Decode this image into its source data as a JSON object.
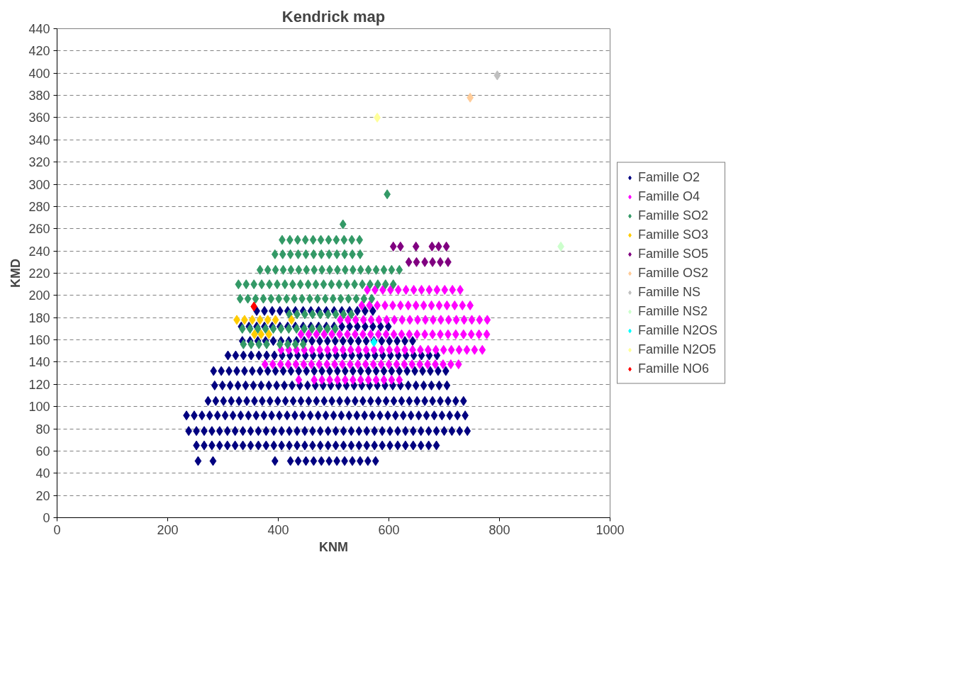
{
  "chart_data": {
    "type": "scatter",
    "title": "Kendrick map",
    "xlabel": "KNM",
    "ylabel": "KMD",
    "xlim": [
      0,
      1000
    ],
    "xticks": [
      0,
      200,
      400,
      600,
      800,
      1000
    ],
    "ylim": [
      0,
      440
    ],
    "yticks": [
      0,
      20,
      40,
      60,
      80,
      100,
      120,
      140,
      160,
      180,
      200,
      220,
      240,
      260,
      280,
      300,
      320,
      340,
      360,
      380,
      400,
      420,
      440
    ],
    "grid": "y",
    "legend": "right",
    "marker": "diamond",
    "series": [
      {
        "name": "Famille O2",
        "color": "#000080",
        "x": [
          255,
          282,
          394,
          422,
          436,
          450,
          464,
          478,
          492,
          506,
          520,
          534,
          548,
          562,
          576,
          252,
          266,
          280,
          294,
          308,
          322,
          336,
          350,
          364,
          378,
          392,
          406,
          420,
          434,
          448,
          462,
          476,
          490,
          504,
          518,
          532,
          546,
          560,
          574,
          588,
          602,
          616,
          630,
          644,
          658,
          672,
          686,
          238,
          252,
          266,
          280,
          294,
          308,
          322,
          336,
          350,
          364,
          378,
          392,
          406,
          420,
          434,
          448,
          462,
          476,
          490,
          504,
          518,
          532,
          546,
          560,
          574,
          588,
          602,
          616,
          630,
          644,
          658,
          672,
          686,
          700,
          714,
          728,
          742,
          234,
          248,
          262,
          276,
          290,
          304,
          318,
          332,
          346,
          360,
          374,
          388,
          402,
          416,
          430,
          444,
          458,
          472,
          486,
          500,
          514,
          528,
          542,
          556,
          570,
          584,
          598,
          612,
          626,
          640,
          654,
          668,
          682,
          696,
          710,
          724,
          738,
          273,
          287,
          301,
          315,
          329,
          343,
          357,
          371,
          385,
          399,
          413,
          427,
          441,
          455,
          469,
          483,
          497,
          511,
          525,
          539,
          553,
          567,
          581,
          595,
          609,
          623,
          637,
          651,
          665,
          679,
          693,
          707,
          721,
          735,
          285,
          299,
          313,
          327,
          341,
          355,
          369,
          383,
          397,
          411,
          425,
          439,
          453,
          467,
          481,
          495,
          509,
          523,
          537,
          551,
          565,
          579,
          593,
          607,
          621,
          635,
          649,
          663,
          677,
          691,
          705,
          283,
          297,
          311,
          325,
          339,
          353,
          367,
          381,
          395,
          409,
          423,
          437,
          451,
          465,
          479,
          493,
          507,
          521,
          535,
          549,
          563,
          577,
          591,
          605,
          619,
          633,
          647,
          661,
          675,
          689,
          703,
          309,
          323,
          337,
          351,
          365,
          379,
          393,
          407,
          421,
          435,
          449,
          463,
          477,
          491,
          505,
          519,
          533,
          547,
          561,
          575,
          589,
          603,
          617,
          631,
          645,
          659,
          673,
          687,
          335,
          349,
          363,
          377,
          391,
          405,
          419,
          433,
          447,
          461,
          475,
          489,
          503,
          517,
          531,
          545,
          559,
          573,
          587,
          601,
          615,
          629,
          643,
          333,
          347,
          361,
          375,
          389,
          403,
          417,
          431,
          445,
          459,
          473,
          487,
          501,
          515,
          529,
          543,
          557,
          571,
          585,
          599,
          361,
          375,
          389,
          403,
          417,
          431,
          445,
          459,
          473,
          487,
          501,
          515,
          529,
          543,
          557,
          571
        ],
        "values": [
          51,
          51,
          51,
          51,
          51,
          51,
          51,
          51,
          51,
          51,
          51,
          51,
          51,
          51,
          51,
          65,
          65,
          65,
          65,
          65,
          65,
          65,
          65,
          65,
          65,
          65,
          65,
          65,
          65,
          65,
          65,
          65,
          65,
          65,
          65,
          65,
          65,
          65,
          65,
          65,
          65,
          65,
          65,
          65,
          65,
          65,
          65,
          78,
          78,
          78,
          78,
          78,
          78,
          78,
          78,
          78,
          78,
          78,
          78,
          78,
          78,
          78,
          78,
          78,
          78,
          78,
          78,
          78,
          78,
          78,
          78,
          78,
          78,
          78,
          78,
          78,
          78,
          78,
          78,
          78,
          78,
          78,
          78,
          78,
          92,
          92,
          92,
          92,
          92,
          92,
          92,
          92,
          92,
          92,
          92,
          92,
          92,
          92,
          92,
          92,
          92,
          92,
          92,
          92,
          92,
          92,
          92,
          92,
          92,
          92,
          92,
          92,
          92,
          92,
          92,
          92,
          92,
          92,
          92,
          92,
          92,
          105,
          105,
          105,
          105,
          105,
          105,
          105,
          105,
          105,
          105,
          105,
          105,
          105,
          105,
          105,
          105,
          105,
          105,
          105,
          105,
          105,
          105,
          105,
          105,
          105,
          105,
          105,
          105,
          105,
          105,
          105,
          105,
          105,
          105,
          119,
          119,
          119,
          119,
          119,
          119,
          119,
          119,
          119,
          119,
          119,
          119,
          119,
          119,
          119,
          119,
          119,
          119,
          119,
          119,
          119,
          119,
          119,
          119,
          119,
          119,
          119,
          119,
          119,
          119,
          119,
          132,
          132,
          132,
          132,
          132,
          132,
          132,
          132,
          132,
          132,
          132,
          132,
          132,
          132,
          132,
          132,
          132,
          132,
          132,
          132,
          132,
          132,
          132,
          132,
          132,
          132,
          132,
          132,
          132,
          132,
          132,
          146,
          146,
          146,
          146,
          146,
          146,
          146,
          146,
          146,
          146,
          146,
          146,
          146,
          146,
          146,
          146,
          146,
          146,
          146,
          146,
          146,
          146,
          146,
          146,
          146,
          146,
          146,
          146,
          159,
          159,
          159,
          159,
          159,
          159,
          159,
          159,
          159,
          159,
          159,
          159,
          159,
          159,
          159,
          159,
          159,
          159,
          159,
          159,
          159,
          159,
          159,
          172,
          172,
          172,
          172,
          172,
          172,
          172,
          172,
          172,
          172,
          172,
          172,
          172,
          172,
          172,
          172,
          172,
          172,
          172,
          172,
          186,
          186,
          186,
          186,
          186,
          186,
          186,
          186,
          186,
          186,
          186,
          186,
          186,
          186,
          186,
          186
        ]
      },
      {
        "name": "Famille O4",
        "color": "#ff00ff",
        "x": [
          437,
          465,
          479,
          493,
          507,
          521,
          535,
          549,
          563,
          577,
          591,
          605,
          619,
          376,
          390,
          404,
          418,
          432,
          446,
          460,
          474,
          488,
          502,
          516,
          530,
          544,
          558,
          572,
          586,
          600,
          614,
          628,
          642,
          656,
          670,
          684,
          698,
          712,
          726,
          405,
          419,
          433,
          447,
          461,
          475,
          489,
          503,
          517,
          531,
          545,
          559,
          573,
          587,
          601,
          615,
          629,
          643,
          657,
          671,
          685,
          699,
          713,
          727,
          741,
          755,
          769,
          441,
          455,
          469,
          483,
          497,
          511,
          525,
          539,
          553,
          567,
          581,
          595,
          609,
          623,
          637,
          651,
          665,
          679,
          693,
          707,
          721,
          735,
          749,
          763,
          777,
          512,
          526,
          540,
          554,
          568,
          582,
          596,
          610,
          624,
          638,
          652,
          666,
          680,
          694,
          708,
          722,
          736,
          750,
          764,
          778,
          551,
          565,
          579,
          593,
          607,
          621,
          635,
          649,
          663,
          677,
          691,
          705,
          719,
          733,
          747,
          561,
          575,
          589,
          603,
          617,
          631,
          645,
          659,
          673,
          687,
          701,
          715,
          729
        ],
        "values": [
          124,
          124,
          124,
          124,
          124,
          124,
          124,
          124,
          124,
          124,
          124,
          124,
          124,
          138,
          138,
          138,
          138,
          138,
          138,
          138,
          138,
          138,
          138,
          138,
          138,
          138,
          138,
          138,
          138,
          138,
          138,
          138,
          138,
          138,
          138,
          138,
          138,
          138,
          138,
          151,
          151,
          151,
          151,
          151,
          151,
          151,
          151,
          151,
          151,
          151,
          151,
          151,
          151,
          151,
          151,
          151,
          151,
          151,
          151,
          151,
          151,
          151,
          151,
          151,
          151,
          151,
          165,
          165,
          165,
          165,
          165,
          165,
          165,
          165,
          165,
          165,
          165,
          165,
          165,
          165,
          165,
          165,
          165,
          165,
          165,
          165,
          165,
          165,
          165,
          165,
          165,
          178,
          178,
          178,
          178,
          178,
          178,
          178,
          178,
          178,
          178,
          178,
          178,
          178,
          178,
          178,
          178,
          178,
          178,
          178,
          178,
          191,
          191,
          191,
          191,
          191,
          191,
          191,
          191,
          191,
          191,
          191,
          191,
          191,
          191,
          191,
          205,
          205,
          205,
          205,
          205,
          205,
          205,
          205,
          205,
          205,
          205,
          205,
          205
        ]
      },
      {
        "name": "Famille SO2",
        "color": "#339966",
        "x": [
          597,
          517,
          407,
          421,
          435,
          449,
          463,
          477,
          491,
          505,
          519,
          533,
          547,
          394,
          408,
          422,
          436,
          450,
          464,
          478,
          492,
          506,
          520,
          534,
          548,
          367,
          381,
          395,
          409,
          423,
          437,
          451,
          465,
          479,
          493,
          507,
          521,
          535,
          549,
          563,
          577,
          591,
          605,
          619,
          328,
          342,
          356,
          370,
          384,
          398,
          412,
          426,
          440,
          454,
          468,
          482,
          496,
          510,
          524,
          538,
          552,
          566,
          580,
          594,
          608,
          331,
          345,
          359,
          373,
          387,
          401,
          415,
          429,
          443,
          457,
          471,
          485,
          499,
          513,
          527,
          541,
          555,
          569,
          420,
          434,
          448,
          462,
          476,
          490,
          504,
          518,
          532,
          335,
          349,
          363,
          377,
          391,
          405,
          419,
          433,
          447,
          461,
          475,
          489,
          503,
          337,
          351,
          365,
          379,
          403,
          417,
          431,
          445
        ],
        "values": [
          291,
          264,
          250,
          250,
          250,
          250,
          250,
          250,
          250,
          250,
          250,
          250,
          250,
          237,
          237,
          237,
          237,
          237,
          237,
          237,
          237,
          237,
          237,
          237,
          237,
          223,
          223,
          223,
          223,
          223,
          223,
          223,
          223,
          223,
          223,
          223,
          223,
          223,
          223,
          223,
          223,
          223,
          223,
          223,
          210,
          210,
          210,
          210,
          210,
          210,
          210,
          210,
          210,
          210,
          210,
          210,
          210,
          210,
          210,
          210,
          210,
          210,
          210,
          210,
          210,
          197,
          197,
          197,
          197,
          197,
          197,
          197,
          197,
          197,
          197,
          197,
          197,
          197,
          197,
          197,
          197,
          197,
          197,
          183,
          183,
          183,
          183,
          183,
          183,
          183,
          183,
          183,
          170,
          170,
          170,
          170,
          170,
          170,
          170,
          170,
          170,
          170,
          170,
          170,
          170,
          156,
          156,
          156,
          156,
          156,
          156,
          156,
          156
        ]
      },
      {
        "name": "Famille SO3",
        "color": "#ffcc00",
        "x": [
          325,
          339,
          353,
          367,
          381,
          395,
          424,
          357,
          369,
          383
        ],
        "values": [
          178,
          178,
          178,
          178,
          178,
          178,
          178,
          165,
          165,
          165
        ]
      },
      {
        "name": "Famille SO5",
        "color": "#800080",
        "x": [
          621,
          649,
          678,
          690,
          704,
          608,
          636,
          650,
          665,
          679,
          693,
          707
        ],
        "values": [
          244,
          244,
          244,
          244,
          244,
          244,
          230,
          230,
          230,
          230,
          230,
          230
        ]
      },
      {
        "name": "Famille OS2",
        "color": "#ffcc99",
        "x": [
          747
        ],
        "values": [
          378
        ]
      },
      {
        "name": "Famille NS",
        "color": "#c0c0c0",
        "x": [
          796
        ],
        "values": [
          398
        ]
      },
      {
        "name": "Famille NS2",
        "color": "#ccffcc",
        "x": [
          911
        ],
        "values": [
          244
        ]
      },
      {
        "name": "Famille N2OS",
        "color": "#00ffff",
        "x": [
          573
        ],
        "values": [
          158
        ]
      },
      {
        "name": "Famille N2O5",
        "color": "#ffff99",
        "x": [
          579
        ],
        "values": [
          360
        ]
      },
      {
        "name": "Famille NO6",
        "color": "#ff0000",
        "x": [
          356
        ],
        "values": [
          190
        ]
      }
    ]
  }
}
